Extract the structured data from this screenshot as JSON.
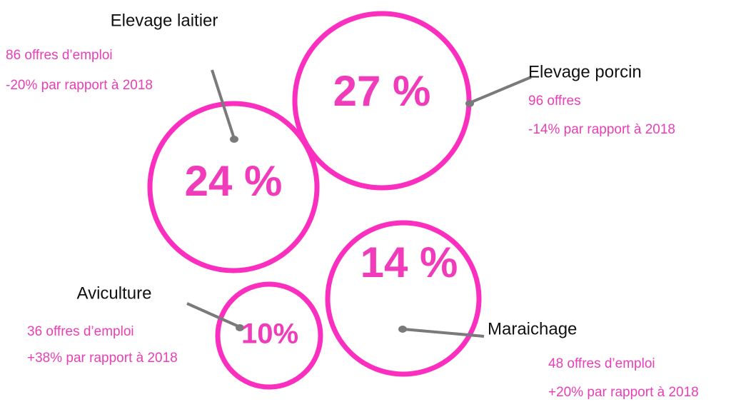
{
  "items": [
    {
      "label": "Elevage laitier",
      "share": "24 %",
      "offers": "86 offres d’emploi",
      "change": "-20% par rapport à 2018"
    },
    {
      "label": "Elevage porcin",
      "share": "27 %",
      "offers": "96 offres",
      "change": "-14% par rapport à 2018"
    },
    {
      "label": "Aviculture",
      "share": "10%",
      "offers": "36 offres d’emploi",
      "change": "+38% par rapport à 2018"
    },
    {
      "label": "Maraichage",
      "share": "14 %",
      "offers": "48 offres d’emploi",
      "change": "+20% par rapport à 2018"
    }
  ]
}
